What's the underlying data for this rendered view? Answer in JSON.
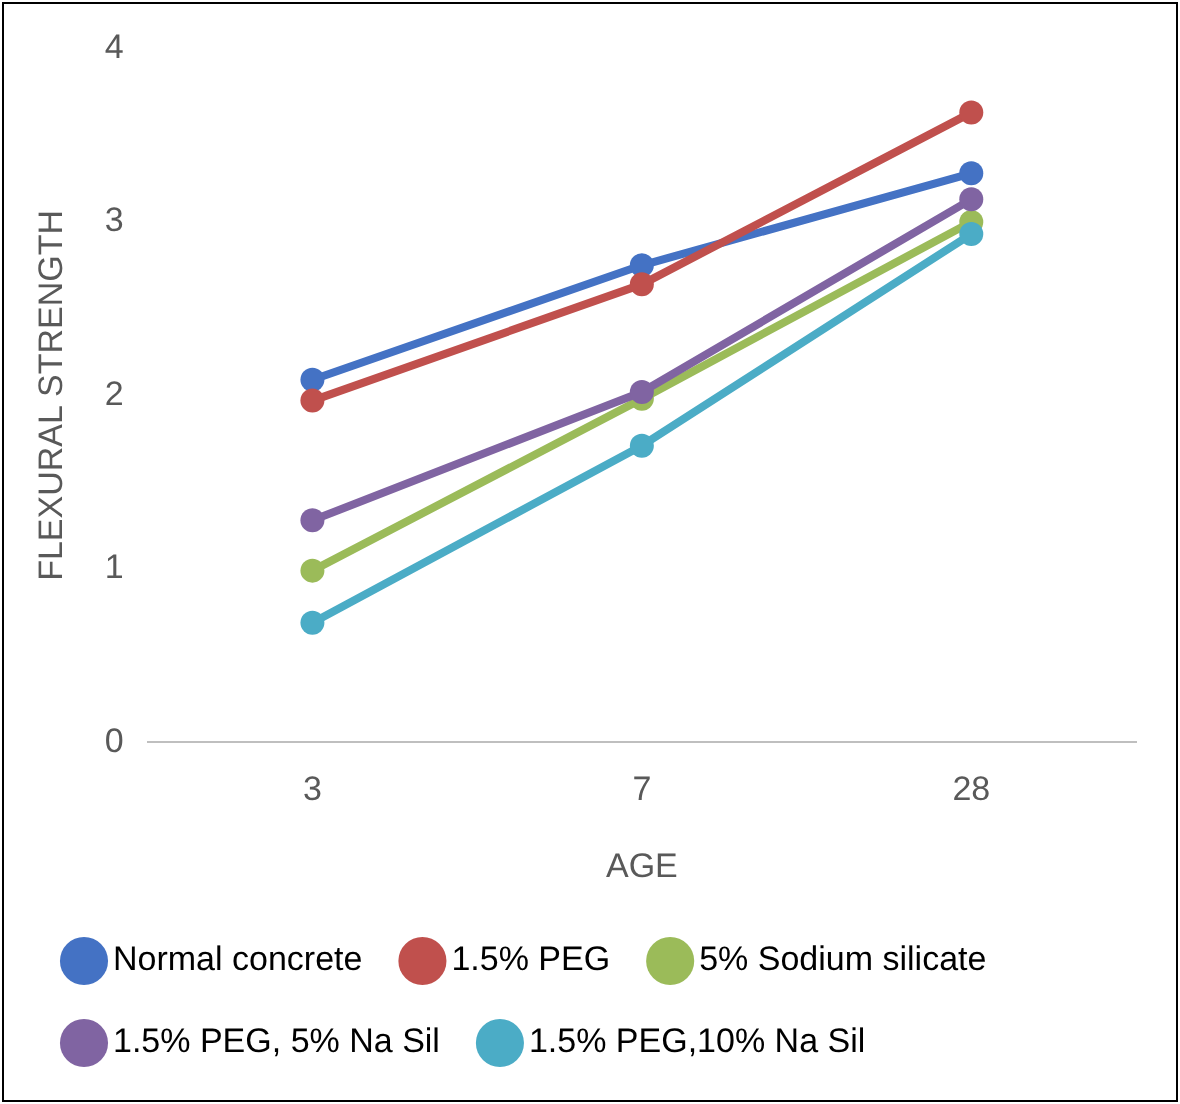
{
  "chart_data": {
    "type": "line",
    "xlabel": "AGE",
    "ylabel": "FLEXURAL STRENGTH",
    "categories": [
      "3",
      "7",
      "28"
    ],
    "ylim": [
      0,
      4
    ],
    "yticks": [
      0,
      1,
      2,
      3,
      4
    ],
    "grid": false,
    "legend": "bottom",
    "marker": "circle",
    "line_style": "solid",
    "series": [
      {
        "name": "Normal concrete",
        "color": "#4472c4",
        "values": [
          2.09,
          2.75,
          3.28
        ]
      },
      {
        "name": "1.5% PEG",
        "color": "#c0504d",
        "values": [
          1.97,
          2.64,
          3.63
        ]
      },
      {
        "name": "5% Sodium silicate",
        "color": "#9bbb59",
        "values": [
          0.99,
          1.98,
          3.0
        ]
      },
      {
        "name": "1.5% PEG, 5% Na Sil",
        "color": "#8064a2",
        "values": [
          1.28,
          2.02,
          3.13
        ]
      },
      {
        "name": "1.5% PEG,10% Na Sil",
        "color": "#4bacc6",
        "values": [
          0.69,
          1.71,
          2.93
        ]
      }
    ]
  }
}
